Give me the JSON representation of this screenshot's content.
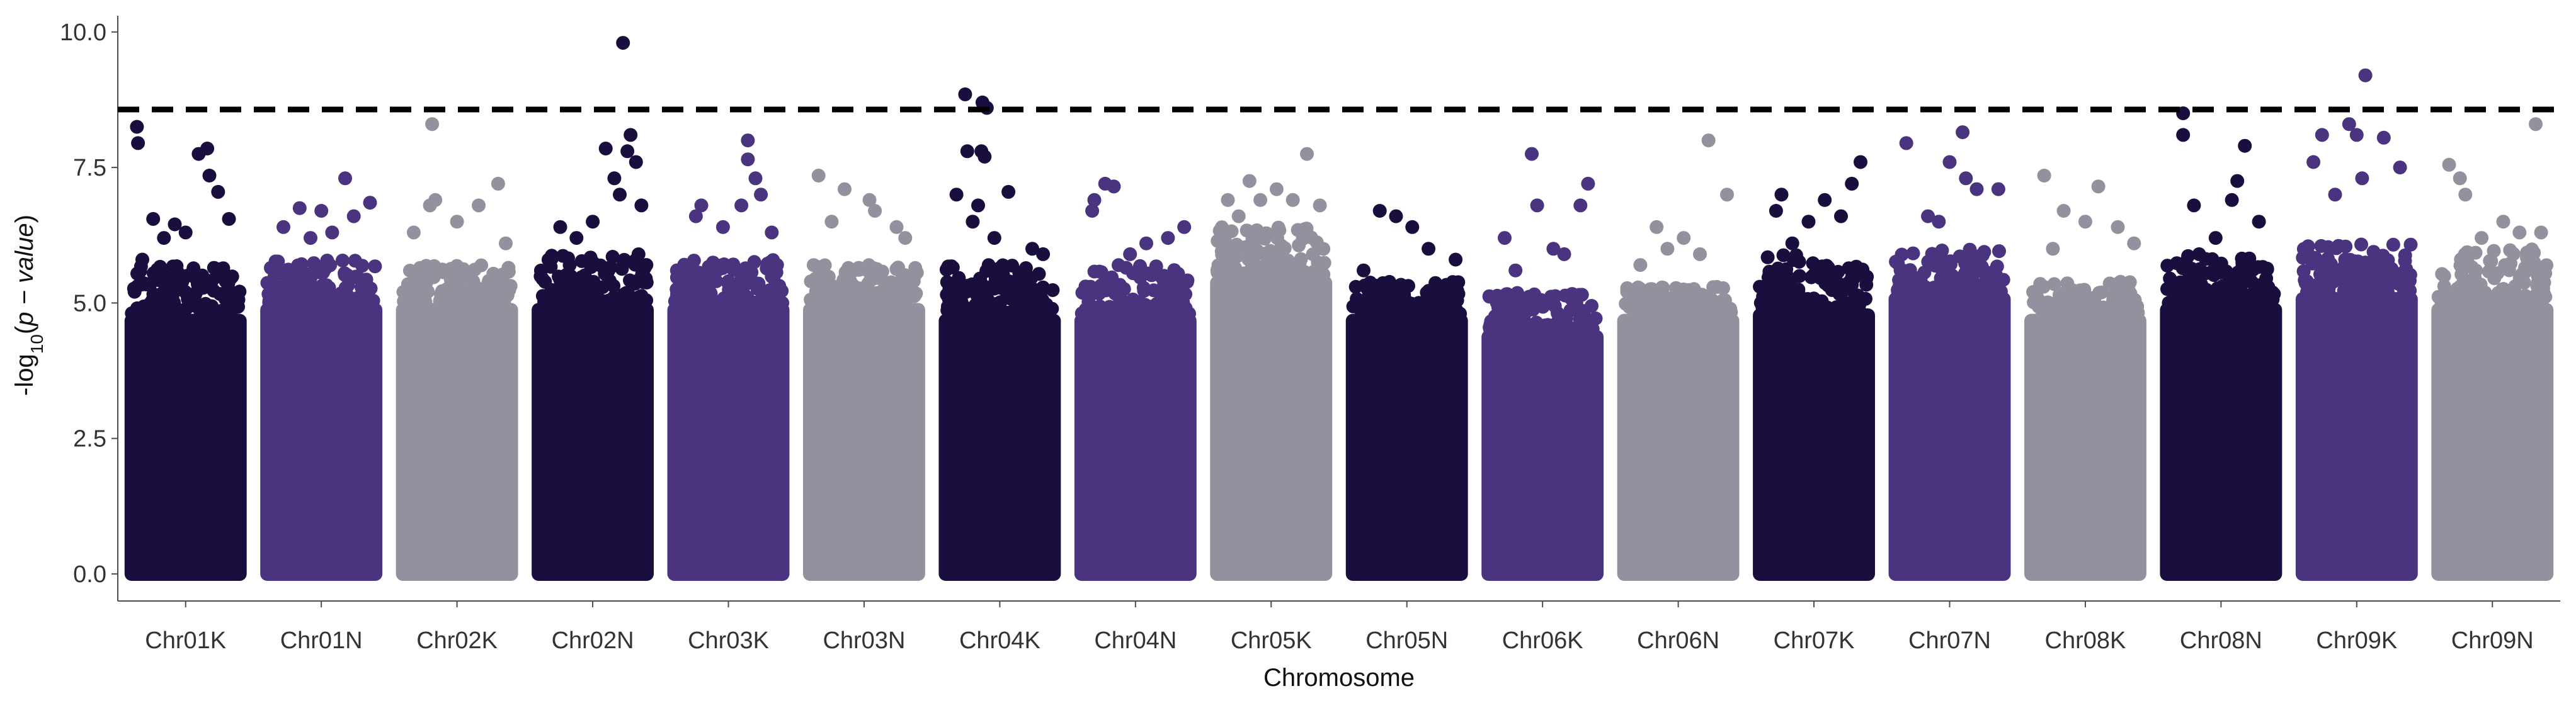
{
  "chart_data": {
    "type": "scatter",
    "subtype": "manhattan",
    "title": "",
    "xlabel": "Chromosome",
    "ylabel": {
      "prefix": "-log",
      "subscript": "10",
      "open": "(",
      "p": "p",
      "minus": " − ",
      "value": "value",
      "close": ")"
    },
    "ylim": [
      -0.5,
      10.3
    ],
    "yticks": [
      "0.0",
      "2.5",
      "5.0",
      "7.5",
      "10.0"
    ],
    "ytick_values": [
      0,
      2.5,
      5.0,
      7.5,
      10.0
    ],
    "threshold": 8.57,
    "grid": false,
    "legend": "none",
    "palette": [
      "#1a0e3f",
      "#4a347f",
      "#94919f"
    ],
    "categories": [
      "Chr01K",
      "Chr01N",
      "Chr02K",
      "Chr02N",
      "Chr03K",
      "Chr03N",
      "Chr04K",
      "Chr04N",
      "Chr05K",
      "Chr05N",
      "Chr06K",
      "Chr06N",
      "Chr07K",
      "Chr07N",
      "Chr08K",
      "Chr08N",
      "Chr09K",
      "Chr09N"
    ],
    "series": [
      {
        "category": "Chr01K",
        "color_index": 0,
        "band_top": 4.8,
        "cloud_top": 5.7,
        "top_points": [
          {
            "x": 0.05,
            "y": 8.25
          },
          {
            "x": 0.06,
            "y": 7.95
          },
          {
            "x": 0.7,
            "y": 7.85
          },
          {
            "x": 0.62,
            "y": 7.75
          },
          {
            "x": 0.72,
            "y": 7.35
          },
          {
            "x": 0.8,
            "y": 7.05
          },
          {
            "x": 0.2,
            "y": 6.55
          },
          {
            "x": 0.4,
            "y": 6.45
          },
          {
            "x": 0.9,
            "y": 6.55
          },
          {
            "x": 0.5,
            "y": 6.3
          },
          {
            "x": 0.3,
            "y": 6.2
          },
          {
            "x": 0.1,
            "y": 5.8
          }
        ]
      },
      {
        "category": "Chr01N",
        "color_index": 1,
        "band_top": 5.0,
        "cloud_top": 5.8,
        "top_points": [
          {
            "x": 0.72,
            "y": 7.3
          },
          {
            "x": 0.3,
            "y": 6.75
          },
          {
            "x": 0.5,
            "y": 6.7
          },
          {
            "x": 0.95,
            "y": 6.85
          },
          {
            "x": 0.8,
            "y": 6.6
          },
          {
            "x": 0.15,
            "y": 6.4
          },
          {
            "x": 0.6,
            "y": 6.3
          },
          {
            "x": 0.4,
            "y": 6.2
          }
        ]
      },
      {
        "category": "Chr02K",
        "color_index": 2,
        "band_top": 5.0,
        "cloud_top": 5.7,
        "top_points": [
          {
            "x": 0.27,
            "y": 8.3
          },
          {
            "x": 0.88,
            "y": 7.2
          },
          {
            "x": 0.3,
            "y": 6.9
          },
          {
            "x": 0.25,
            "y": 6.8
          },
          {
            "x": 0.7,
            "y": 6.8
          },
          {
            "x": 0.5,
            "y": 6.5
          },
          {
            "x": 0.1,
            "y": 6.3
          },
          {
            "x": 0.95,
            "y": 6.1
          }
        ]
      },
      {
        "category": "Chr02N",
        "color_index": 0,
        "band_top": 5.0,
        "cloud_top": 5.9,
        "top_points": [
          {
            "x": 0.78,
            "y": 9.8
          },
          {
            "x": 0.85,
            "y": 8.1
          },
          {
            "x": 0.62,
            "y": 7.85
          },
          {
            "x": 0.82,
            "y": 7.8
          },
          {
            "x": 0.9,
            "y": 7.6
          },
          {
            "x": 0.7,
            "y": 7.3
          },
          {
            "x": 0.75,
            "y": 7.0
          },
          {
            "x": 0.2,
            "y": 6.4
          },
          {
            "x": 0.5,
            "y": 6.5
          },
          {
            "x": 0.35,
            "y": 6.2
          },
          {
            "x": 0.95,
            "y": 6.8
          }
        ]
      },
      {
        "category": "Chr03K",
        "color_index": 1,
        "band_top": 5.0,
        "cloud_top": 5.8,
        "top_points": [
          {
            "x": 0.68,
            "y": 8.0
          },
          {
            "x": 0.68,
            "y": 7.65
          },
          {
            "x": 0.75,
            "y": 7.3
          },
          {
            "x": 0.8,
            "y": 7.0
          },
          {
            "x": 0.62,
            "y": 6.8
          },
          {
            "x": 0.25,
            "y": 6.8
          },
          {
            "x": 0.2,
            "y": 6.6
          },
          {
            "x": 0.45,
            "y": 6.4
          },
          {
            "x": 0.9,
            "y": 6.3
          }
        ]
      },
      {
        "category": "Chr03N",
        "color_index": 2,
        "band_top": 5.0,
        "cloud_top": 5.7,
        "top_points": [
          {
            "x": 0.08,
            "y": 7.35
          },
          {
            "x": 0.32,
            "y": 7.1
          },
          {
            "x": 0.55,
            "y": 6.9
          },
          {
            "x": 0.6,
            "y": 6.7
          },
          {
            "x": 0.2,
            "y": 6.5
          },
          {
            "x": 0.8,
            "y": 6.4
          },
          {
            "x": 0.88,
            "y": 6.2
          }
        ]
      },
      {
        "category": "Chr04K",
        "color_index": 0,
        "band_top": 4.8,
        "cloud_top": 5.7,
        "top_points": [
          {
            "x": 0.18,
            "y": 8.85
          },
          {
            "x": 0.34,
            "y": 8.7
          },
          {
            "x": 0.38,
            "y": 8.6
          },
          {
            "x": 0.2,
            "y": 7.8
          },
          {
            "x": 0.33,
            "y": 7.8
          },
          {
            "x": 0.36,
            "y": 7.7
          },
          {
            "x": 0.58,
            "y": 7.05
          },
          {
            "x": 0.1,
            "y": 7.0
          },
          {
            "x": 0.3,
            "y": 6.8
          },
          {
            "x": 0.25,
            "y": 6.5
          },
          {
            "x": 0.45,
            "y": 6.2
          },
          {
            "x": 0.8,
            "y": 6.0
          },
          {
            "x": 0.9,
            "y": 5.9
          }
        ]
      },
      {
        "category": "Chr04N",
        "color_index": 1,
        "band_top": 4.8,
        "cloud_top": 5.7,
        "top_points": [
          {
            "x": 0.22,
            "y": 7.2
          },
          {
            "x": 0.3,
            "y": 7.15
          },
          {
            "x": 0.12,
            "y": 6.9
          },
          {
            "x": 0.1,
            "y": 6.7
          },
          {
            "x": 0.95,
            "y": 6.4
          },
          {
            "x": 0.8,
            "y": 6.2
          },
          {
            "x": 0.6,
            "y": 6.1
          },
          {
            "x": 0.45,
            "y": 5.9
          }
        ]
      },
      {
        "category": "Chr05K",
        "color_index": 2,
        "band_top": 5.5,
        "cloud_top": 6.4,
        "top_points": [
          {
            "x": 0.83,
            "y": 7.75
          },
          {
            "x": 0.3,
            "y": 7.25
          },
          {
            "x": 0.55,
            "y": 7.1
          },
          {
            "x": 0.1,
            "y": 6.9
          },
          {
            "x": 0.4,
            "y": 6.9
          },
          {
            "x": 0.7,
            "y": 6.9
          },
          {
            "x": 0.95,
            "y": 6.8
          },
          {
            "x": 0.2,
            "y": 6.6
          }
        ]
      },
      {
        "category": "Chr05N",
        "color_index": 0,
        "band_top": 4.8,
        "cloud_top": 5.4,
        "top_points": [
          {
            "x": 0.25,
            "y": 6.7
          },
          {
            "x": 0.4,
            "y": 6.6
          },
          {
            "x": 0.55,
            "y": 6.4
          },
          {
            "x": 0.7,
            "y": 6.0
          },
          {
            "x": 0.95,
            "y": 5.8
          },
          {
            "x": 0.1,
            "y": 5.6
          }
        ]
      },
      {
        "category": "Chr06K",
        "color_index": 1,
        "band_top": 4.5,
        "cloud_top": 5.2,
        "top_points": [
          {
            "x": 0.4,
            "y": 7.75
          },
          {
            "x": 0.92,
            "y": 7.2
          },
          {
            "x": 0.85,
            "y": 6.8
          },
          {
            "x": 0.45,
            "y": 6.8
          },
          {
            "x": 0.15,
            "y": 6.2
          },
          {
            "x": 0.6,
            "y": 6.0
          },
          {
            "x": 0.7,
            "y": 5.9
          },
          {
            "x": 0.25,
            "y": 5.6
          }
        ]
      },
      {
        "category": "Chr06N",
        "color_index": 2,
        "band_top": 4.8,
        "cloud_top": 5.3,
        "top_points": [
          {
            "x": 0.78,
            "y": 8.0
          },
          {
            "x": 0.95,
            "y": 7.0
          },
          {
            "x": 0.3,
            "y": 6.4
          },
          {
            "x": 0.55,
            "y": 6.2
          },
          {
            "x": 0.4,
            "y": 6.0
          },
          {
            "x": 0.7,
            "y": 5.9
          },
          {
            "x": 0.15,
            "y": 5.7
          }
        ]
      },
      {
        "category": "Chr07K",
        "color_index": 0,
        "band_top": 4.9,
        "cloud_top": 5.9,
        "top_points": [
          {
            "x": 0.93,
            "y": 7.6
          },
          {
            "x": 0.85,
            "y": 7.2
          },
          {
            "x": 0.2,
            "y": 7.0
          },
          {
            "x": 0.6,
            "y": 6.9
          },
          {
            "x": 0.15,
            "y": 6.7
          },
          {
            "x": 0.45,
            "y": 6.5
          },
          {
            "x": 0.75,
            "y": 6.6
          },
          {
            "x": 0.3,
            "y": 6.1
          }
        ]
      },
      {
        "category": "Chr07N",
        "color_index": 1,
        "band_top": 5.2,
        "cloud_top": 6.0,
        "top_points": [
          {
            "x": 0.62,
            "y": 8.15
          },
          {
            "x": 0.1,
            "y": 7.95
          },
          {
            "x": 0.5,
            "y": 7.6
          },
          {
            "x": 0.65,
            "y": 7.3
          },
          {
            "x": 0.75,
            "y": 7.1
          },
          {
            "x": 0.95,
            "y": 7.1
          },
          {
            "x": 0.3,
            "y": 6.6
          },
          {
            "x": 0.4,
            "y": 6.5
          }
        ]
      },
      {
        "category": "Chr08K",
        "color_index": 2,
        "band_top": 4.8,
        "cloud_top": 5.4,
        "top_points": [
          {
            "x": 0.12,
            "y": 7.35
          },
          {
            "x": 0.62,
            "y": 7.15
          },
          {
            "x": 0.3,
            "y": 6.7
          },
          {
            "x": 0.5,
            "y": 6.5
          },
          {
            "x": 0.8,
            "y": 6.4
          },
          {
            "x": 0.95,
            "y": 6.1
          },
          {
            "x": 0.2,
            "y": 6.0
          }
        ]
      },
      {
        "category": "Chr08N",
        "color_index": 0,
        "band_top": 5.0,
        "cloud_top": 5.9,
        "top_points": [
          {
            "x": 0.15,
            "y": 8.5
          },
          {
            "x": 0.15,
            "y": 8.1
          },
          {
            "x": 0.72,
            "y": 7.9
          },
          {
            "x": 0.65,
            "y": 7.25
          },
          {
            "x": 0.25,
            "y": 6.8
          },
          {
            "x": 0.6,
            "y": 6.9
          },
          {
            "x": 0.85,
            "y": 6.5
          },
          {
            "x": 0.45,
            "y": 6.2
          }
        ]
      },
      {
        "category": "Chr09K",
        "color_index": 1,
        "band_top": 5.2,
        "cloud_top": 6.1,
        "top_points": [
          {
            "x": 0.58,
            "y": 9.2
          },
          {
            "x": 0.43,
            "y": 8.3
          },
          {
            "x": 0.18,
            "y": 8.1
          },
          {
            "x": 0.5,
            "y": 8.1
          },
          {
            "x": 0.75,
            "y": 8.05
          },
          {
            "x": 0.9,
            "y": 7.5
          },
          {
            "x": 0.1,
            "y": 7.6
          },
          {
            "x": 0.55,
            "y": 7.3
          },
          {
            "x": 0.3,
            "y": 7.0
          }
        ]
      },
      {
        "category": "Chr09N",
        "color_index": 2,
        "band_top": 5.0,
        "cloud_top": 6.0,
        "top_points": [
          {
            "x": 0.9,
            "y": 8.3
          },
          {
            "x": 0.1,
            "y": 7.55
          },
          {
            "x": 0.2,
            "y": 7.3
          },
          {
            "x": 0.25,
            "y": 7.0
          },
          {
            "x": 0.6,
            "y": 6.5
          },
          {
            "x": 0.75,
            "y": 6.3
          },
          {
            "x": 0.95,
            "y": 6.3
          },
          {
            "x": 0.4,
            "y": 6.2
          }
        ]
      }
    ]
  }
}
